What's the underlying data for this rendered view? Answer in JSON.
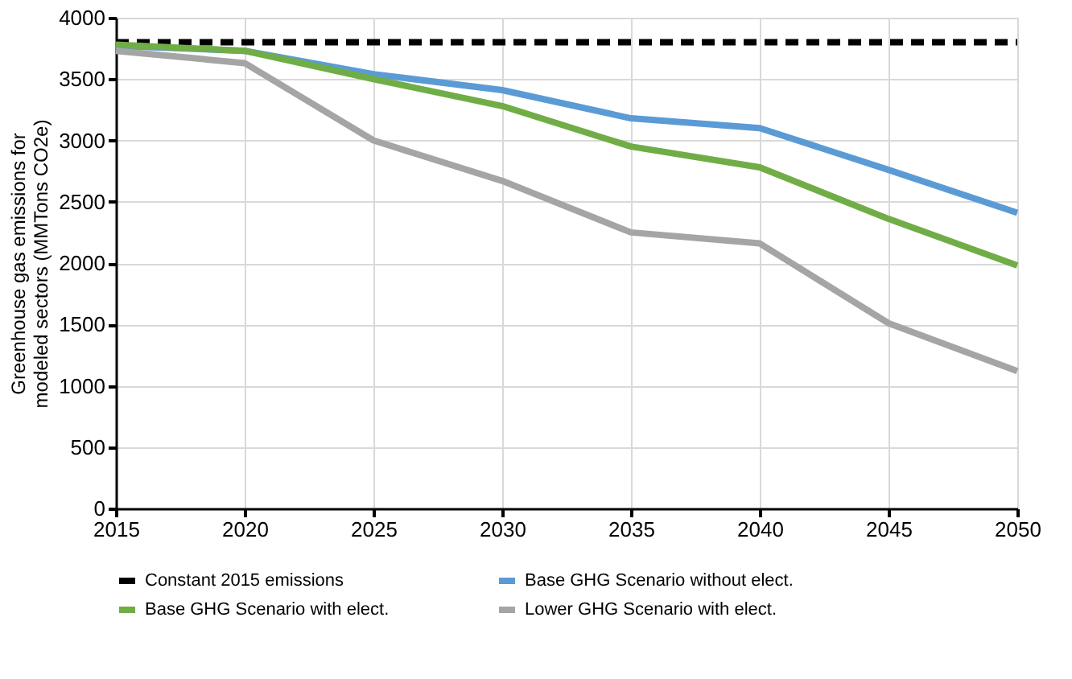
{
  "chart_data": {
    "type": "line",
    "ylabel": "Greenhouse gas emissions for\nmodeled sectors (MMTons CO2e)",
    "x": [
      2015,
      2020,
      2025,
      2030,
      2035,
      2040,
      2045,
      2050
    ],
    "xlim": [
      2015,
      2050
    ],
    "xticks": [
      2015,
      2020,
      2025,
      2030,
      2035,
      2040,
      2045,
      2050
    ],
    "ylim": [
      0,
      4000
    ],
    "yticks": [
      0,
      500,
      1000,
      1500,
      2000,
      2500,
      3000,
      3500,
      4000
    ],
    "grid": true,
    "legend": "bottom",
    "line_style": "solid",
    "marker": "none",
    "series": [
      {
        "name": "Constant 2015 emissions",
        "color": "#000000",
        "line_style": "dashed",
        "values": [
          3800,
          3800,
          3800,
          3800,
          3800,
          3800,
          3800,
          3800
        ]
      },
      {
        "name": "Base GHG Scenario without elect.",
        "color": "#5b9bd5",
        "values": [
          3770,
          3730,
          3540,
          3410,
          3180,
          3100,
          2760,
          2410
        ]
      },
      {
        "name": "Base GHG Scenario with elect.",
        "color": "#70ad47",
        "values": [
          3780,
          3730,
          3500,
          3280,
          2950,
          2780,
          2360,
          1980
        ]
      },
      {
        "name": "Lower GHG Scenario with elect.",
        "color": "#a5a5a5",
        "values": [
          3730,
          3630,
          3000,
          2670,
          2250,
          2160,
          1510,
          1120
        ]
      }
    ]
  }
}
